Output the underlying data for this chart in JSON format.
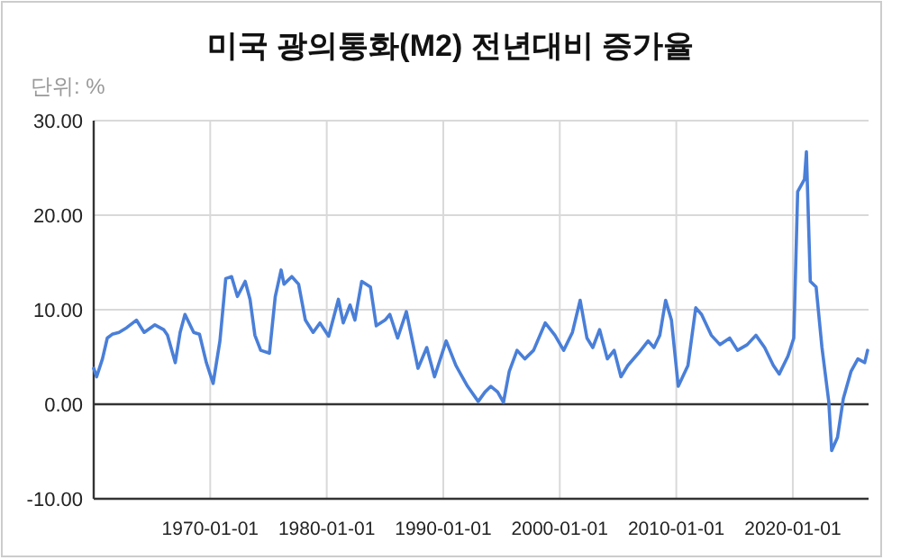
{
  "chart_data": {
    "type": "line",
    "title": "미국 광의통화(M2) 전년대비 증가율",
    "annotations": [
      "단위: %"
    ],
    "x": [
      "1960-01",
      "1960-04",
      "1960-10",
      "1961-03",
      "1961-08",
      "1962-03",
      "1962-11",
      "1963-09",
      "1964-05",
      "1965-04",
      "1966-01",
      "1966-05",
      "1967-01",
      "1967-06",
      "1967-11",
      "1968-08",
      "1969-02",
      "1969-09",
      "1970-04",
      "1970-11",
      "1971-05",
      "1971-11",
      "1972-05",
      "1973-01",
      "1973-06",
      "1973-11",
      "1974-05",
      "1975-02",
      "1975-08",
      "1976-02",
      "1976-05",
      "1977-01",
      "1977-08",
      "1978-03",
      "1978-11",
      "1979-06",
      "1980-03",
      "1981-01",
      "1981-06",
      "1982-01",
      "1982-06",
      "1983-01",
      "1983-10",
      "1984-04",
      "1985-01",
      "1985-06",
      "1986-02",
      "1986-11",
      "1987-11",
      "1988-08",
      "1989-04",
      "1990-04",
      "1991-02",
      "1992-02",
      "1993-01",
      "1993-08",
      "1994-02",
      "1994-09",
      "1995-03",
      "1995-09",
      "1996-05",
      "1997-01",
      "1997-10",
      "1998-10",
      "1999-08",
      "2000-05",
      "2001-02",
      "2001-10",
      "2002-05",
      "2002-11",
      "2003-06",
      "2004-02",
      "2004-09",
      "2005-04",
      "2005-11",
      "2006-10",
      "2007-08",
      "2008-02",
      "2008-08",
      "2009-02",
      "2009-08",
      "2010-03",
      "2011-01",
      "2011-09",
      "2012-03",
      "2013-01",
      "2013-10",
      "2014-08",
      "2015-04",
      "2016-02",
      "2016-11",
      "2017-08",
      "2018-05",
      "2018-11",
      "2019-08",
      "2020-02",
      "2020-06",
      "2021-01",
      "2021-03",
      "2021-07",
      "2022-01",
      "2022-07",
      "2023-02",
      "2023-05",
      "2023-11",
      "2024-05",
      "2025-01",
      "2025-08",
      "2026-03",
      "2026-06"
    ],
    "series": [
      {
        "color": "#4a7fd8",
        "values": [
          3.8,
          2.9,
          4.8,
          7.0,
          7.4,
          7.6,
          8.1,
          8.9,
          7.6,
          8.4,
          7.9,
          7.3,
          4.4,
          7.6,
          9.5,
          7.6,
          7.4,
          4.4,
          2.2,
          6.7,
          13.3,
          13.5,
          11.4,
          13.0,
          11.1,
          7.3,
          5.7,
          5.4,
          11.4,
          14.2,
          12.7,
          13.5,
          12.7,
          8.9,
          7.6,
          8.6,
          7.2,
          11.1,
          8.6,
          10.5,
          8.9,
          13.0,
          12.4,
          8.3,
          8.9,
          9.5,
          7.0,
          9.8,
          3.8,
          6.0,
          2.9,
          6.7,
          4.1,
          1.9,
          0.3,
          1.3,
          1.9,
          1.3,
          0.2,
          3.5,
          5.7,
          4.8,
          5.7,
          8.6,
          7.3,
          5.7,
          7.6,
          11.0,
          7.0,
          6.0,
          7.9,
          4.8,
          5.7,
          2.9,
          4.1,
          5.4,
          6.7,
          6.0,
          7.3,
          11.0,
          8.9,
          1.9,
          4.1,
          10.2,
          9.5,
          7.3,
          6.3,
          7.0,
          5.7,
          6.3,
          7.3,
          6.0,
          4.1,
          3.2,
          5.1,
          7.0,
          22.5,
          23.8,
          26.7,
          13.0,
          12.4,
          6.0,
          0.3,
          -4.9,
          -3.5,
          0.6,
          3.5,
          4.8,
          4.4,
          5.7
        ]
      }
    ],
    "xlim": [
      "1960-01",
      "2026-07"
    ],
    "xticks": [
      {
        "value": "1970-01-01",
        "label": "1970-01-01"
      },
      {
        "value": "1980-01-01",
        "label": "1980-01-01"
      },
      {
        "value": "1990-01-01",
        "label": "1990-01-01"
      },
      {
        "value": "2000-01-01",
        "label": "2000-01-01"
      },
      {
        "value": "2010-01-01",
        "label": "2010-01-01"
      },
      {
        "value": "2020-01-01",
        "label": "2020-01-01"
      }
    ],
    "ylim": [
      -10,
      30
    ],
    "yticks": [
      {
        "value": -10,
        "label": "-10.00"
      },
      {
        "value": 0,
        "label": "0.00"
      },
      {
        "value": 10,
        "label": "10.00"
      },
      {
        "value": 20,
        "label": "20.00"
      },
      {
        "value": 30,
        "label": "30.00"
      }
    ],
    "ref_lines": [
      {
        "axis": "y",
        "value": 0,
        "color": "#333333"
      }
    ],
    "grid": true,
    "marker": "none",
    "line_style": "solid"
  }
}
